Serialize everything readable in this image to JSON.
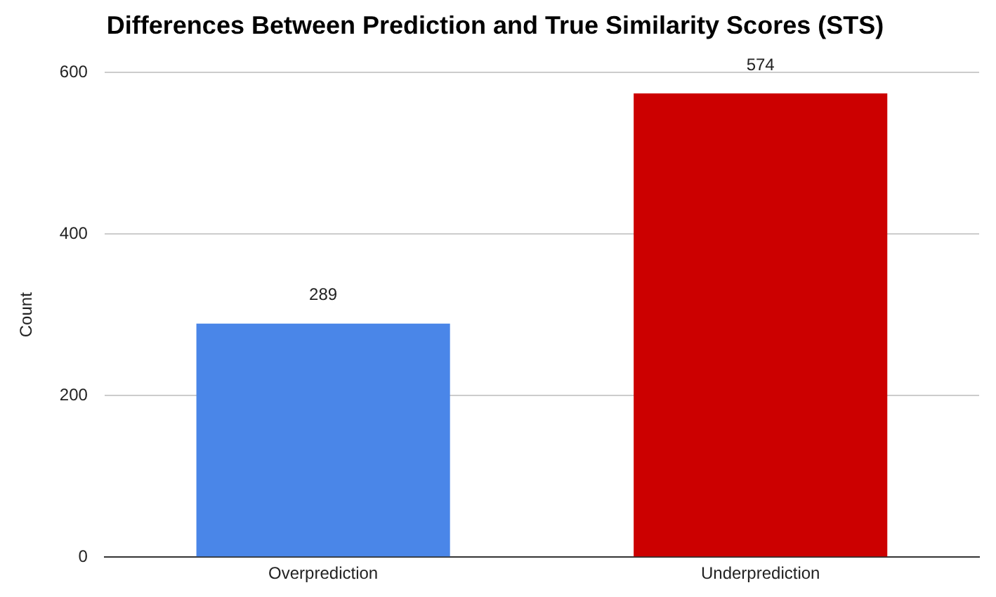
{
  "chart_data": {
    "type": "bar",
    "title": "Differences Between Prediction and True Similarity Scores (STS)",
    "ylabel": "Count",
    "categories": [
      "Overprediction",
      "Underprediction"
    ],
    "values": [
      289,
      574
    ],
    "colors": [
      "#4a86e8",
      "#cc0000"
    ],
    "ylim": [
      0,
      600
    ],
    "yticks": [
      0,
      200,
      400,
      600
    ],
    "grid": "y",
    "data_labels": true,
    "legend": false
  }
}
